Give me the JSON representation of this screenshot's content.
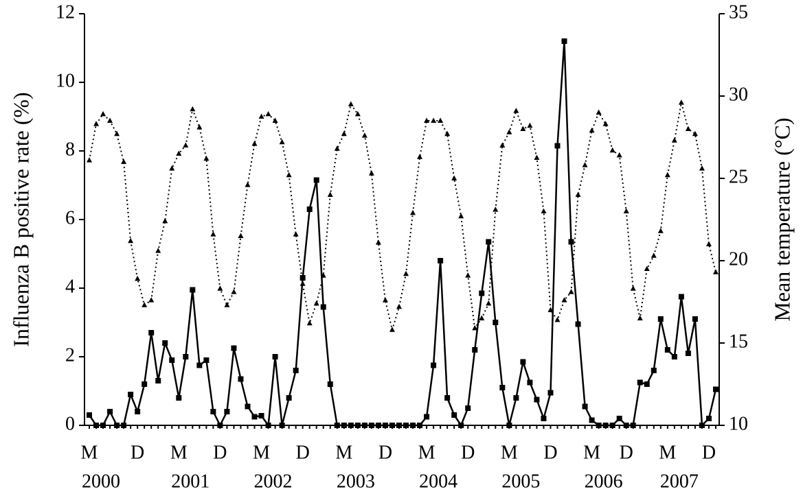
{
  "chart_data": {
    "type": "line",
    "ylabel": "Influenza B positive rate (%)",
    "y2label": "Mean temperature (°C)",
    "categories": [
      "M",
      null,
      null,
      null,
      null,
      null,
      null,
      "D",
      null,
      null,
      null,
      null,
      null,
      "M",
      null,
      null,
      null,
      null,
      null,
      "D",
      null,
      null,
      null,
      null,
      null,
      "M",
      null,
      null,
      null,
      null,
      null,
      "D",
      null,
      null,
      null,
      null,
      null,
      "M",
      null,
      null,
      null,
      null,
      null,
      "D",
      null,
      null,
      null,
      null,
      null,
      "M",
      null,
      null,
      null,
      null,
      null,
      "D",
      null,
      null,
      null,
      null,
      null,
      "M",
      null,
      null,
      null,
      null,
      null,
      "D",
      null,
      null,
      null,
      null,
      null,
      "M",
      null,
      null,
      null,
      null,
      "D",
      null,
      null,
      null,
      null,
      null,
      "M",
      null,
      null,
      null,
      null,
      null,
      "D",
      null
    ],
    "years": [
      "2000",
      "2001",
      "2002",
      "2003",
      "2004",
      "2005",
      "2006",
      "2007"
    ],
    "ylim": [
      0,
      12
    ],
    "yticks": [
      0,
      2,
      4,
      6,
      8,
      10,
      12
    ],
    "y2lim": [
      10,
      35
    ],
    "y2ticks": [
      10,
      15,
      20,
      25,
      30,
      35
    ],
    "series": [
      {
        "name": "Influenza B positive rate",
        "color": "#000000",
        "marker": "square",
        "style": "solid",
        "values": [
          0.3,
          0,
          0,
          0.4,
          0,
          0,
          0.9,
          0.4,
          1.2,
          2.7,
          1.3,
          2.4,
          1.9,
          0.8,
          2.0,
          3.95,
          1.75,
          1.9,
          0.4,
          0,
          0.4,
          2.25,
          1.35,
          0.55,
          0.25,
          0.28,
          0,
          2.0,
          0,
          0.8,
          1.6,
          4.3,
          6.3,
          7.15,
          3.45,
          1.2,
          0,
          0,
          0,
          0,
          0,
          0,
          0,
          0,
          0,
          0,
          0,
          0,
          0,
          0.25,
          1.75,
          4.8,
          0.8,
          0.3,
          0,
          0.5,
          2.2,
          3.85,
          5.35,
          3.0,
          1.1,
          0,
          0.8,
          1.85,
          1.25,
          0.75,
          0.2,
          0.95,
          8.15,
          11.2,
          5.35,
          2.95,
          0.55,
          0.15,
          0,
          0,
          0,
          0.2,
          0,
          0,
          1.25,
          1.2,
          1.6,
          3.1,
          2.2,
          2.0,
          3.75,
          2.1,
          3.1,
          0,
          0.2,
          1.05
        ]
      },
      {
        "name": "Mean temperature",
        "color": "#000000",
        "marker": "triangle",
        "style": "dotted",
        "axis": "y2",
        "values": [
          26.1,
          28.3,
          28.9,
          28.5,
          27.7,
          26.0,
          21.2,
          18.9,
          17.3,
          17.6,
          20.6,
          22.4,
          25.6,
          26.5,
          27.0,
          29.2,
          28.1,
          26.2,
          21.6,
          18.3,
          17.3,
          18.1,
          21.5,
          24.6,
          27.1,
          28.75,
          28.9,
          28.5,
          27.2,
          25.2,
          21.6,
          18.6,
          16.2,
          17.4,
          19.1,
          24.0,
          26.8,
          27.7,
          29.5,
          28.9,
          27.6,
          25.3,
          21.1,
          17.6,
          15.8,
          17.2,
          19.2,
          22.9,
          26.3,
          28.5,
          28.5,
          28.5,
          27.7,
          25.0,
          22.7,
          19.1,
          15.9,
          16.5,
          17.4,
          23.1,
          27.0,
          27.8,
          29.1,
          28.0,
          28.2,
          26.25,
          23.0,
          17.0,
          16.4,
          17.6,
          18.1,
          24.0,
          25.8,
          27.9,
          29.0,
          28.3,
          26.7,
          26.4,
          23.0,
          18.3,
          16.5,
          19.5,
          20.3,
          21.8,
          25.2,
          27.3,
          29.6,
          28.0,
          27.7,
          25.6,
          21.0,
          19.3
        ]
      }
    ]
  }
}
